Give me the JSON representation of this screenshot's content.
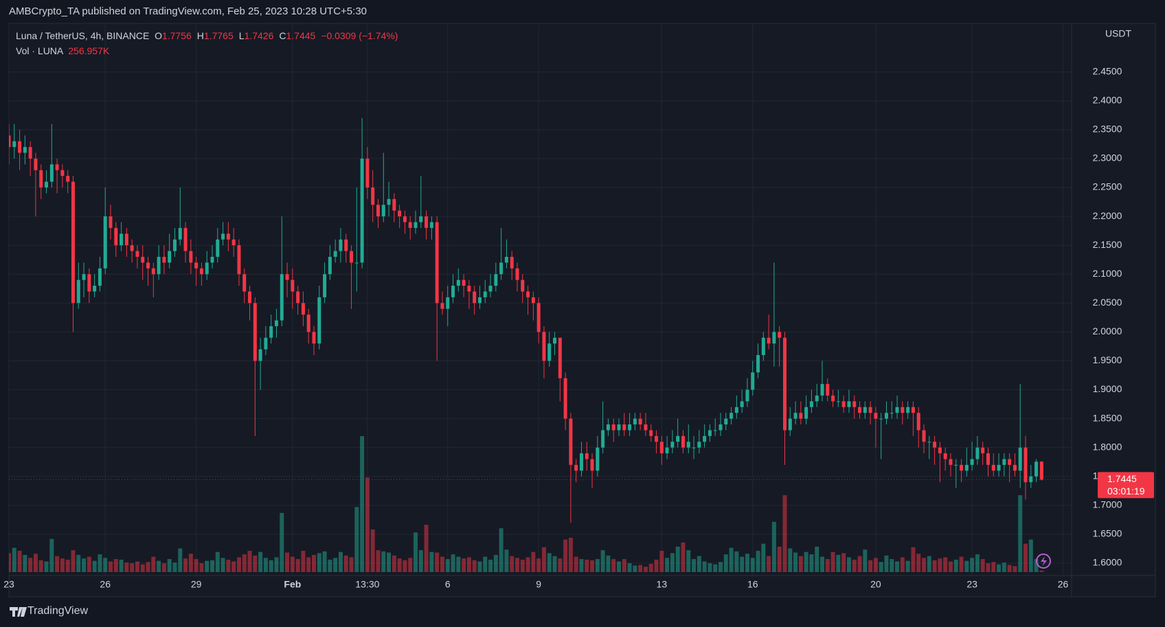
{
  "header": "AMBCrypto_TA published on TradingView.com, Feb 25, 2023 10:28 UTC+5:30",
  "footer": "TradingView",
  "chart_data": {
    "type": "candlestick",
    "symbol": "Luna / TetherUS, 4h, BINANCE",
    "ohlc_letters": [
      "O",
      "H",
      "L",
      "C"
    ],
    "change_label": "−0.0309 (−1.74%)",
    "volume_title": "Vol · LUNA",
    "volume_label": "256.957K",
    "axis_unit": "USDT",
    "countdown": "03:01:19",
    "up_color": "#22ab94",
    "down_color": "#f23645",
    "grid": true,
    "xlim": [
      0,
      198.6
    ],
    "ylim": [
      1.5786,
      2.534
    ],
    "yticks": [
      {
        "value": 1.6,
        "label": "1.6000"
      },
      {
        "value": 1.65,
        "label": "1.6500"
      },
      {
        "value": 1.7,
        "label": "1.7000"
      },
      {
        "value": 1.75,
        "label": "1.7500"
      },
      {
        "value": 1.8,
        "label": "1.8000"
      },
      {
        "value": 1.85,
        "label": "1.8500"
      },
      {
        "value": 1.9,
        "label": "1.9000"
      },
      {
        "value": 1.95,
        "label": "1.9500"
      },
      {
        "value": 2.0,
        "label": "2.0000"
      },
      {
        "value": 2.05,
        "label": "2.0500"
      },
      {
        "value": 2.1,
        "label": "2.1000"
      },
      {
        "value": 2.15,
        "label": "2.1500"
      },
      {
        "value": 2.2,
        "label": "2.2000"
      },
      {
        "value": 2.25,
        "label": "2.2500"
      },
      {
        "value": 2.3,
        "label": "2.3000"
      },
      {
        "value": 2.35,
        "label": "2.3500"
      },
      {
        "value": 2.4,
        "label": "2.4000"
      },
      {
        "value": 2.45,
        "label": "2.4500"
      }
    ],
    "xticks": [
      {
        "value": 0,
        "label": "23"
      },
      {
        "value": 18,
        "label": "26"
      },
      {
        "value": 35,
        "label": "29"
      },
      {
        "value": 53,
        "label": "Feb"
      },
      {
        "value": 67,
        "label": "13:30"
      },
      {
        "value": 82,
        "label": "6"
      },
      {
        "value": 99,
        "label": "9"
      },
      {
        "value": 122,
        "label": "13"
      },
      {
        "value": 139,
        "label": "16"
      },
      {
        "value": 162,
        "label": "20"
      },
      {
        "value": 180,
        "label": "23"
      },
      {
        "value": 197,
        "label": "26"
      }
    ],
    "candles": [
      [
        2.34,
        2.36,
        2.29,
        2.32,
        3200
      ],
      [
        2.32,
        2.36,
        2.3,
        2.33,
        4100
      ],
      [
        2.33,
        2.35,
        2.28,
        2.31,
        3600
      ],
      [
        2.31,
        2.34,
        2.29,
        2.32,
        2900
      ],
      [
        2.32,
        2.33,
        2.27,
        2.3,
        2400
      ],
      [
        2.3,
        2.31,
        2.2,
        2.28,
        3100
      ],
      [
        2.28,
        2.29,
        2.23,
        2.25,
        2000
      ],
      [
        2.25,
        2.28,
        2.24,
        2.26,
        1800
      ],
      [
        2.26,
        2.36,
        2.25,
        2.29,
        5600
      ],
      [
        2.29,
        2.3,
        2.24,
        2.28,
        2700
      ],
      [
        2.28,
        2.29,
        2.25,
        2.27,
        2300
      ],
      [
        2.27,
        2.28,
        2.24,
        2.26,
        2100
      ],
      [
        2.26,
        2.27,
        2.0,
        2.05,
        3700
      ],
      [
        2.05,
        2.12,
        2.04,
        2.09,
        2900
      ],
      [
        2.09,
        2.12,
        2.06,
        2.1,
        2300
      ],
      [
        2.1,
        2.11,
        2.05,
        2.07,
        2600
      ],
      [
        2.07,
        2.1,
        2.06,
        2.08,
        1900
      ],
      [
        2.08,
        2.13,
        2.07,
        2.11,
        3000
      ],
      [
        2.11,
        2.25,
        2.1,
        2.2,
        2400
      ],
      [
        2.2,
        2.22,
        2.16,
        2.18,
        1800
      ],
      [
        2.18,
        2.19,
        2.13,
        2.15,
        2200
      ],
      [
        2.15,
        2.19,
        2.14,
        2.17,
        2100
      ],
      [
        2.17,
        2.18,
        2.13,
        2.15,
        1600
      ],
      [
        2.15,
        2.16,
        2.12,
        2.14,
        1500
      ],
      [
        2.14,
        2.15,
        2.11,
        2.13,
        1800
      ],
      [
        2.13,
        2.15,
        2.09,
        2.12,
        1300
      ],
      [
        2.12,
        2.13,
        2.08,
        2.11,
        1700
      ],
      [
        2.11,
        2.12,
        2.06,
        2.1,
        2600
      ],
      [
        2.1,
        2.15,
        2.09,
        2.13,
        1900
      ],
      [
        2.13,
        2.15,
        2.1,
        2.12,
        1500
      ],
      [
        2.12,
        2.17,
        2.11,
        2.14,
        2200
      ],
      [
        2.14,
        2.18,
        2.13,
        2.16,
        1600
      ],
      [
        2.16,
        2.25,
        2.15,
        2.18,
        4000
      ],
      [
        2.18,
        2.19,
        2.12,
        2.14,
        2300
      ],
      [
        2.14,
        2.16,
        2.1,
        2.12,
        3100
      ],
      [
        2.12,
        2.13,
        2.08,
        2.11,
        2200
      ],
      [
        2.11,
        2.12,
        2.08,
        2.1,
        1500
      ],
      [
        2.1,
        2.14,
        2.09,
        2.12,
        1900
      ],
      [
        2.12,
        2.15,
        2.11,
        2.13,
        2000
      ],
      [
        2.13,
        2.18,
        2.12,
        2.16,
        3400
      ],
      [
        2.16,
        2.19,
        2.15,
        2.17,
        2400
      ],
      [
        2.17,
        2.19,
        2.14,
        2.16,
        2100
      ],
      [
        2.16,
        2.18,
        2.13,
        2.15,
        1800
      ],
      [
        2.15,
        2.16,
        2.08,
        2.1,
        2500
      ],
      [
        2.1,
        2.11,
        2.05,
        2.07,
        3000
      ],
      [
        2.07,
        2.08,
        2.02,
        2.05,
        3600
      ],
      [
        2.05,
        2.06,
        1.82,
        1.95,
        2800
      ],
      [
        1.95,
        1.99,
        1.9,
        1.97,
        3400
      ],
      [
        1.97,
        2.01,
        1.96,
        1.99,
        2400
      ],
      [
        1.99,
        2.03,
        1.98,
        2.01,
        2000
      ],
      [
        2.01,
        2.04,
        1.99,
        2.02,
        2500
      ],
      [
        2.02,
        2.2,
        2.01,
        2.1,
        10000
      ],
      [
        2.1,
        2.12,
        2.06,
        2.09,
        3300
      ],
      [
        2.09,
        2.11,
        2.04,
        2.07,
        2600
      ],
      [
        2.07,
        2.08,
        2.03,
        2.05,
        2200
      ],
      [
        2.05,
        2.07,
        2.01,
        2.03,
        3600
      ],
      [
        2.03,
        2.04,
        1.98,
        2.0,
        2500
      ],
      [
        2.0,
        2.01,
        1.96,
        1.98,
        2900
      ],
      [
        1.98,
        2.08,
        1.97,
        2.06,
        3200
      ],
      [
        2.06,
        2.12,
        2.05,
        2.1,
        3500
      ],
      [
        2.1,
        2.15,
        2.09,
        2.13,
        2100
      ],
      [
        2.13,
        2.16,
        2.12,
        2.14,
        2400
      ],
      [
        2.14,
        2.18,
        2.12,
        2.16,
        3400
      ],
      [
        2.16,
        2.17,
        2.12,
        2.14,
        2800
      ],
      [
        2.14,
        2.15,
        2.04,
        2.12,
        2500
      ],
      [
        2.12,
        2.25,
        2.07,
        2.12,
        11000
      ],
      [
        2.12,
        2.37,
        2.11,
        2.3,
        23000
      ],
      [
        2.3,
        2.32,
        2.23,
        2.25,
        16000
      ],
      [
        2.25,
        2.28,
        2.19,
        2.22,
        7200
      ],
      [
        2.22,
        2.23,
        2.18,
        2.2,
        3700
      ],
      [
        2.2,
        2.31,
        2.19,
        2.22,
        3500
      ],
      [
        2.22,
        2.26,
        2.2,
        2.23,
        3300
      ],
      [
        2.23,
        2.24,
        2.19,
        2.21,
        2800
      ],
      [
        2.21,
        2.22,
        2.18,
        2.2,
        2300
      ],
      [
        2.2,
        2.21,
        2.17,
        2.19,
        2000
      ],
      [
        2.19,
        2.2,
        2.16,
        2.18,
        2400
      ],
      [
        2.18,
        2.21,
        2.17,
        2.19,
        6700
      ],
      [
        2.19,
        2.27,
        2.18,
        2.2,
        3700
      ],
      [
        2.2,
        2.21,
        2.16,
        2.18,
        8000
      ],
      [
        2.18,
        2.2,
        2.16,
        2.19,
        3400
      ],
      [
        2.19,
        2.2,
        1.95,
        2.05,
        3300
      ],
      [
        2.05,
        2.07,
        2.03,
        2.04,
        2600
      ],
      [
        2.04,
        2.08,
        2.01,
        2.06,
        2200
      ],
      [
        2.06,
        2.1,
        2.05,
        2.08,
        3000
      ],
      [
        2.08,
        2.11,
        2.07,
        2.09,
        2600
      ],
      [
        2.09,
        2.1,
        2.06,
        2.08,
        2300
      ],
      [
        2.08,
        2.09,
        2.04,
        2.07,
        2500
      ],
      [
        2.07,
        2.08,
        2.03,
        2.05,
        2000
      ],
      [
        2.05,
        2.08,
        2.04,
        2.06,
        1800
      ],
      [
        2.06,
        2.09,
        2.05,
        2.07,
        2600
      ],
      [
        2.07,
        2.1,
        2.06,
        2.08,
        2100
      ],
      [
        2.08,
        2.12,
        2.07,
        2.1,
        2900
      ],
      [
        2.1,
        2.18,
        2.09,
        2.12,
        7400
      ],
      [
        2.12,
        2.16,
        2.11,
        2.13,
        3800
      ],
      [
        2.13,
        2.14,
        2.09,
        2.11,
        2700
      ],
      [
        2.11,
        2.12,
        2.07,
        2.09,
        2400
      ],
      [
        2.09,
        2.1,
        2.05,
        2.07,
        2100
      ],
      [
        2.07,
        2.08,
        2.03,
        2.06,
        2500
      ],
      [
        2.06,
        2.07,
        2.02,
        2.05,
        3400
      ],
      [
        2.05,
        2.06,
        1.98,
        2.0,
        2300
      ],
      [
        2.0,
        2.01,
        1.92,
        1.95,
        4200
      ],
      [
        1.95,
        2.0,
        1.94,
        1.98,
        3200
      ],
      [
        1.98,
        2.0,
        1.96,
        1.99,
        2700
      ],
      [
        1.99,
        1.99,
        1.88,
        1.92,
        2300
      ],
      [
        1.92,
        1.93,
        1.83,
        1.85,
        5500
      ],
      [
        1.85,
        1.86,
        1.67,
        1.77,
        5800
      ],
      [
        1.77,
        1.78,
        1.74,
        1.76,
        2600
      ],
      [
        1.76,
        1.81,
        1.75,
        1.79,
        2200
      ],
      [
        1.79,
        1.81,
        1.76,
        1.78,
        2100
      ],
      [
        1.78,
        1.79,
        1.73,
        1.76,
        2000
      ],
      [
        1.76,
        1.82,
        1.75,
        1.8,
        2200
      ],
      [
        1.8,
        1.88,
        1.79,
        1.83,
        3700
      ],
      [
        1.83,
        1.85,
        1.82,
        1.84,
        2800
      ],
      [
        1.84,
        1.85,
        1.81,
        1.83,
        2200
      ],
      [
        1.83,
        1.85,
        1.82,
        1.84,
        1800
      ],
      [
        1.84,
        1.86,
        1.82,
        1.83,
        2200
      ],
      [
        1.83,
        1.86,
        1.82,
        1.84,
        1500
      ],
      [
        1.84,
        1.86,
        1.83,
        1.85,
        1100
      ],
      [
        1.85,
        1.86,
        1.83,
        1.84,
        1200
      ],
      [
        1.84,
        1.86,
        1.82,
        1.83,
        900
      ],
      [
        1.83,
        1.84,
        1.81,
        1.82,
        1400
      ],
      [
        1.82,
        1.83,
        1.79,
        1.81,
        2100
      ],
      [
        1.81,
        1.82,
        1.77,
        1.79,
        3600
      ],
      [
        1.79,
        1.82,
        1.78,
        1.8,
        2400
      ],
      [
        1.8,
        1.83,
        1.79,
        1.81,
        3200
      ],
      [
        1.81,
        1.85,
        1.8,
        1.82,
        4300
      ],
      [
        1.82,
        1.83,
        1.79,
        1.8,
        5000
      ],
      [
        1.8,
        1.84,
        1.79,
        1.81,
        3700
      ],
      [
        1.8,
        1.82,
        1.78,
        1.8,
        2200
      ],
      [
        1.8,
        1.83,
        1.79,
        1.81,
        2700
      ],
      [
        1.81,
        1.84,
        1.8,
        1.82,
        1800
      ],
      [
        1.82,
        1.84,
        1.81,
        1.83,
        1500
      ],
      [
        1.83,
        1.85,
        1.82,
        1.83,
        1300
      ],
      [
        1.83,
        1.86,
        1.82,
        1.84,
        1700
      ],
      [
        1.84,
        1.86,
        1.83,
        1.85,
        3000
      ],
      [
        1.85,
        1.87,
        1.84,
        1.86,
        4100
      ],
      [
        1.86,
        1.89,
        1.85,
        1.87,
        3500
      ],
      [
        1.87,
        1.9,
        1.86,
        1.88,
        2600
      ],
      [
        1.88,
        1.92,
        1.87,
        1.9,
        3100
      ],
      [
        1.9,
        1.95,
        1.89,
        1.93,
        2400
      ],
      [
        1.93,
        1.98,
        1.92,
        1.96,
        3600
      ],
      [
        1.96,
        2.0,
        1.95,
        1.99,
        4800
      ],
      [
        1.99,
        2.03,
        1.97,
        1.98,
        2700
      ],
      [
        1.98,
        2.12,
        1.94,
        2.0,
        8500
      ],
      [
        2.0,
        2.01,
        1.94,
        1.99,
        4300
      ],
      [
        1.99,
        2.0,
        1.77,
        1.83,
        13000
      ],
      [
        1.83,
        1.87,
        1.82,
        1.85,
        4000
      ],
      [
        1.85,
        1.88,
        1.84,
        1.86,
        3300
      ],
      [
        1.86,
        1.88,
        1.84,
        1.85,
        2700
      ],
      [
        1.85,
        1.89,
        1.84,
        1.87,
        3400
      ],
      [
        1.87,
        1.9,
        1.86,
        1.88,
        3000
      ],
      [
        1.88,
        1.91,
        1.87,
        1.89,
        4300
      ],
      [
        1.89,
        1.95,
        1.88,
        1.91,
        2600
      ],
      [
        1.91,
        1.92,
        1.88,
        1.89,
        2200
      ],
      [
        1.89,
        1.9,
        1.87,
        1.88,
        3400
      ],
      [
        1.88,
        1.9,
        1.87,
        1.88,
        2900
      ],
      [
        1.88,
        1.89,
        1.86,
        1.87,
        3200
      ],
      [
        1.87,
        1.9,
        1.86,
        1.88,
        2500
      ],
      [
        1.88,
        1.89,
        1.85,
        1.87,
        2100
      ],
      [
        1.87,
        1.88,
        1.85,
        1.86,
        2700
      ],
      [
        1.86,
        1.88,
        1.85,
        1.87,
        3800
      ],
      [
        1.87,
        1.88,
        1.84,
        1.86,
        2000
      ],
      [
        1.86,
        1.87,
        1.8,
        1.85,
        2400
      ],
      [
        1.85,
        1.86,
        1.78,
        1.85,
        1700
      ],
      [
        1.85,
        1.88,
        1.84,
        1.86,
        2800
      ],
      [
        1.86,
        1.88,
        1.85,
        1.86,
        2200
      ],
      [
        1.86,
        1.89,
        1.85,
        1.87,
        1800
      ],
      [
        1.87,
        1.88,
        1.84,
        1.86,
        2500
      ],
      [
        1.86,
        1.88,
        1.85,
        1.87,
        1900
      ],
      [
        1.87,
        1.88,
        1.82,
        1.86,
        4200
      ],
      [
        1.86,
        1.87,
        1.8,
        1.83,
        3100
      ],
      [
        1.83,
        1.84,
        1.79,
        1.81,
        2400
      ],
      [
        1.81,
        1.82,
        1.78,
        1.81,
        2700
      ],
      [
        1.81,
        1.82,
        1.77,
        1.8,
        2000
      ],
      [
        1.8,
        1.81,
        1.74,
        1.79,
        2300
      ],
      [
        1.79,
        1.8,
        1.76,
        1.78,
        2500
      ],
      [
        1.78,
        1.79,
        1.75,
        1.77,
        1800
      ],
      [
        1.77,
        1.78,
        1.73,
        1.77,
        2100
      ],
      [
        1.77,
        1.78,
        1.74,
        1.76,
        2600
      ],
      [
        1.76,
        1.8,
        1.75,
        1.77,
        1900
      ],
      [
        1.77,
        1.81,
        1.76,
        1.78,
        2400
      ],
      [
        1.78,
        1.82,
        1.77,
        1.8,
        3000
      ],
      [
        1.8,
        1.81,
        1.77,
        1.79,
        2200
      ],
      [
        1.79,
        1.8,
        1.75,
        1.77,
        1500
      ],
      [
        1.77,
        1.79,
        1.75,
        1.76,
        1700
      ],
      [
        1.76,
        1.79,
        1.75,
        1.77,
        1300
      ],
      [
        1.77,
        1.79,
        1.75,
        1.78,
        1600
      ],
      [
        1.78,
        1.79,
        1.74,
        1.77,
        1200
      ],
      [
        1.77,
        1.79,
        1.75,
        1.76,
        1000
      ],
      [
        1.76,
        1.91,
        1.73,
        1.8,
        13000
      ],
      [
        1.8,
        1.82,
        1.71,
        1.74,
        4800
      ],
      [
        1.74,
        1.77,
        1.73,
        1.75,
        5500
      ],
      [
        1.75,
        1.78,
        1.74,
        1.7756,
        2200
      ],
      [
        1.7756,
        1.7765,
        1.7426,
        1.7445,
        256.957
      ]
    ]
  }
}
